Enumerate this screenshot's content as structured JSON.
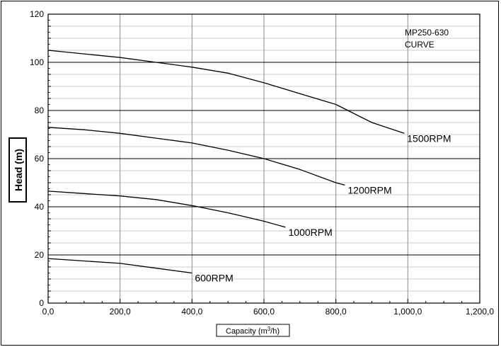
{
  "chart_data": {
    "type": "line",
    "title": "",
    "annotation": [
      "MP250-630",
      "CURVE"
    ],
    "xlabel": "Capacity (m³/h)",
    "xlabel_parts": {
      "pre": "Capacity (m",
      "sup": "3",
      "post": "/h)"
    },
    "ylabel": "Head (m)",
    "xlim": [
      0,
      1200
    ],
    "ylim": [
      0,
      120
    ],
    "x_ticks": [
      0,
      200,
      400,
      600,
      800,
      1000,
      1200
    ],
    "x_tick_labels": [
      "0,0",
      "200,0",
      "400,0",
      "600,0",
      "800,0",
      "1,000,0",
      "1,200,0"
    ],
    "y_ticks": [
      0,
      20,
      40,
      60,
      80,
      100,
      120
    ],
    "y_tick_labels": [
      "0",
      "20",
      "40",
      "60",
      "80",
      "100",
      "120"
    ],
    "grid": true,
    "legend": "none (curves labeled inline)",
    "series": [
      {
        "name": "1500RPM",
        "x": [
          0,
          100,
          200,
          300,
          400,
          500,
          600,
          700,
          800,
          900,
          990
        ],
        "y": [
          105,
          103.5,
          102,
          100,
          98,
          95.5,
          91.5,
          87,
          82.5,
          75,
          70.5
        ]
      },
      {
        "name": "1200RPM",
        "x": [
          0,
          100,
          200,
          300,
          400,
          500,
          600,
          700,
          800,
          825
        ],
        "y": [
          73,
          72,
          70.5,
          68.5,
          66.5,
          63.5,
          60,
          55.5,
          50,
          49
        ]
      },
      {
        "name": "1000RPM",
        "x": [
          0,
          100,
          200,
          300,
          400,
          500,
          600,
          660
        ],
        "y": [
          46.5,
          45.5,
          44.5,
          43,
          40.5,
          37.5,
          34,
          31.5
        ]
      },
      {
        "name": "600RPM",
        "x": [
          0,
          100,
          200,
          300,
          400
        ],
        "y": [
          18.5,
          17.5,
          16.5,
          14.5,
          12.5
        ]
      }
    ]
  }
}
